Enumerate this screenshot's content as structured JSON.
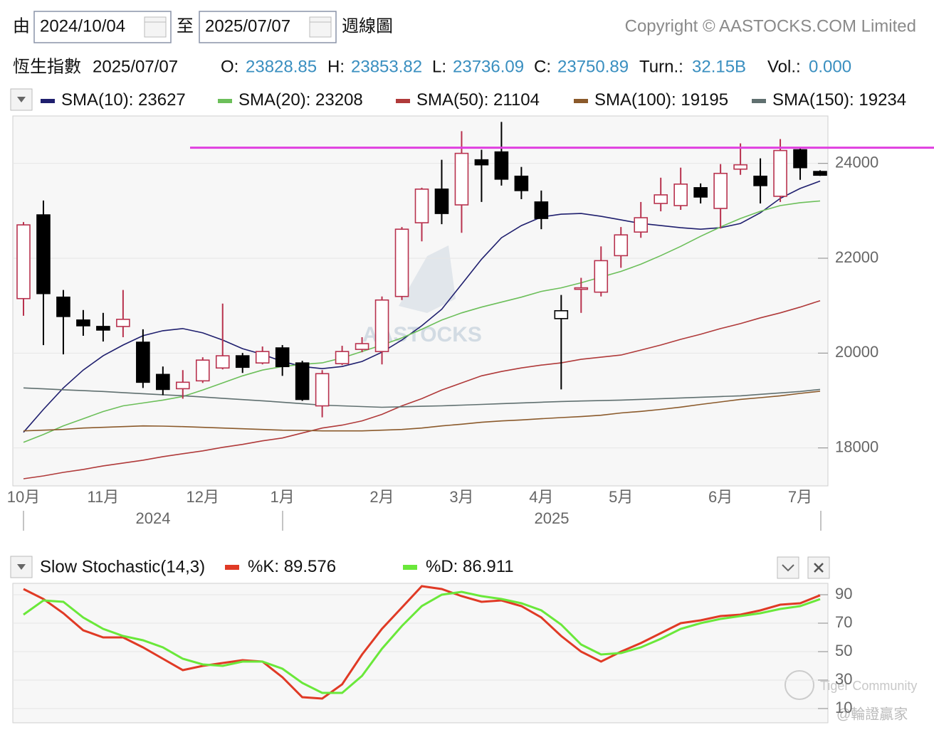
{
  "header": {
    "from_label": "由",
    "from_date": "2024/10/04",
    "to_label": "至",
    "to_date": "2025/07/07",
    "period": "週線圖",
    "copyright": "Copyright © AASTOCKS.COM Limited",
    "index_name": "恆生指數",
    "date": "2025/07/07",
    "quote": [
      {
        "label": "O:",
        "value": "23828.85"
      },
      {
        "label": "H:",
        "value": "23853.82"
      },
      {
        "label": "L:",
        "value": "23736.09"
      },
      {
        "label": "C:",
        "value": "23750.89"
      },
      {
        "label": "Turn.:",
        "value": "32.15B"
      },
      {
        "label": "Vol.:",
        "value": "0.000"
      }
    ]
  },
  "watermarks": [
    "AASTOCKS",
    "Tiger Community",
    "@輪證贏家"
  ],
  "chart_data": [
    {
      "type": "candlestick",
      "categories": [
        "10月",
        null,
        null,
        null,
        "11月",
        null,
        null,
        null,
        null,
        "12月",
        null,
        null,
        null,
        "1月",
        null,
        null,
        null,
        null,
        "2月",
        null,
        null,
        null,
        "3月",
        null,
        null,
        null,
        "4月",
        null,
        null,
        null,
        "5月",
        null,
        null,
        null,
        null,
        "6月",
        null,
        null,
        null,
        "7月",
        null
      ],
      "year_labels": [
        "2024",
        "2025"
      ],
      "open": [
        21149,
        22914,
        21179,
        20697,
        20561,
        20561,
        20229,
        19550,
        19249,
        19415,
        19686,
        19943,
        19792,
        20109,
        19792,
        18887,
        19777,
        20078,
        20033,
        21194,
        22748,
        23457,
        23125,
        24075,
        24241,
        23729,
        23186,
        20727,
        21345,
        21285,
        22054,
        22552,
        23155,
        23110,
        23487,
        23050,
        23879,
        23729,
        23306,
        24287,
        23828.85
      ],
      "high": [
        22763,
        23216,
        21330,
        20908,
        20848,
        21330,
        20501,
        19717,
        19641,
        19912,
        21044,
        20003,
        20139,
        20169,
        19837,
        19641,
        20154,
        20335,
        21194,
        22658,
        23487,
        24075,
        24679,
        24287,
        24875,
        23925,
        23427,
        21225,
        21587,
        22250,
        22658,
        23186,
        23698,
        23910,
        23578,
        23985,
        24422,
        24106,
        24513,
        24347,
        23853.82
      ],
      "low": [
        20787,
        20169,
        19973,
        20365,
        20244,
        20335,
        19264,
        19113,
        19038,
        19370,
        19656,
        19581,
        19762,
        19520,
        18992,
        18646,
        19747,
        20018,
        19762,
        21119,
        22356,
        22718,
        22537,
        23186,
        23532,
        23246,
        22612,
        19234,
        20848,
        21194,
        21798,
        22431,
        22989,
        23020,
        23155,
        22627,
        23759,
        23155,
        23186,
        23653,
        23736.09
      ],
      "close": [
        22703,
        21255,
        20772,
        20576,
        20486,
        20712,
        19385,
        19234,
        19385,
        19852,
        19943,
        19701,
        20033,
        19716,
        19023,
        19566,
        20033,
        20199,
        21119,
        22612,
        23457,
        22944,
        24211,
        23970,
        23668,
        23427,
        22839,
        20893,
        21376,
        21949,
        22492,
        22854,
        23336,
        23563,
        23291,
        23789,
        23970,
        23532,
        24271,
        23910,
        23750.89
      ],
      "up_color": "#b8324e",
      "down_color": "#000000",
      "series": [
        {
          "name": "SMA(10):",
          "color": "#1f1f6e",
          "values": [
            18330,
            18812,
            19265,
            19642,
            19943,
            20170,
            20366,
            20471,
            20517,
            20426,
            20275,
            20094,
            19974,
            19823,
            19717,
            19672,
            19717,
            19823,
            20019,
            20275,
            20577,
            20924,
            21451,
            21979,
            22432,
            22688,
            22869,
            22929,
            22944,
            22884,
            22809,
            22733,
            22688,
            22643,
            22612,
            22643,
            22733,
            22959,
            23261,
            23472,
            23627
          ]
        },
        {
          "name": "SMA(20):",
          "color": "#6cbf5a",
          "values": [
            18119,
            18285,
            18466,
            18616,
            18767,
            18888,
            18948,
            19009,
            19084,
            19220,
            19370,
            19521,
            19642,
            19717,
            19762,
            19793,
            19898,
            20034,
            20170,
            20320,
            20501,
            20697,
            20848,
            20969,
            21074,
            21180,
            21301,
            21376,
            21482,
            21602,
            21723,
            21874,
            22055,
            22251,
            22462,
            22658,
            22839,
            22990,
            23110,
            23171,
            23208
          ]
        },
        {
          "name": "SMA(50):",
          "color": "#b03a3a",
          "values": [
            17350,
            17410,
            17485,
            17546,
            17621,
            17681,
            17742,
            17817,
            17878,
            17938,
            18013,
            18074,
            18149,
            18209,
            18315,
            18420,
            18481,
            18571,
            18707,
            18888,
            19039,
            19220,
            19370,
            19521,
            19612,
            19687,
            19747,
            19793,
            19868,
            19913,
            19959,
            20064,
            20170,
            20290,
            20396,
            20517,
            20622,
            20743,
            20848,
            20969,
            21104
          ]
        },
        {
          "name": "SMA(100):",
          "color": "#8b5a2b",
          "values": [
            18360,
            18375,
            18390,
            18420,
            18435,
            18450,
            18465,
            18460,
            18450,
            18435,
            18420,
            18405,
            18390,
            18375,
            18370,
            18360,
            18360,
            18360,
            18375,
            18390,
            18420,
            18465,
            18500,
            18541,
            18570,
            18590,
            18616,
            18640,
            18661,
            18690,
            18737,
            18770,
            18812,
            18860,
            18918,
            18970,
            19024,
            19060,
            19099,
            19150,
            19195
          ]
        },
        {
          "name": "SMA(150):",
          "color": "#607070",
          "values": [
            19265,
            19246,
            19227,
            19208,
            19190,
            19167,
            19144,
            19122,
            19100,
            19073,
            19047,
            19020,
            18994,
            18964,
            18934,
            18903,
            18888,
            18873,
            18858,
            18868,
            18878,
            18888,
            18903,
            18918,
            18934,
            18949,
            18964,
            18979,
            18989,
            18999,
            19009,
            19024,
            19039,
            19054,
            19069,
            19084,
            19099,
            19130,
            19160,
            19190,
            19234
          ]
        }
      ],
      "hline": {
        "value": 24330,
        "color": "#e040e0"
      },
      "ylim": [
        17200,
        25000
      ],
      "yticks": [
        18000,
        20000,
        22000,
        24000
      ],
      "grid": true
    },
    {
      "type": "line",
      "title": "Slow Stochastic(14,3)",
      "series": [
        {
          "name": "%K:",
          "color": "#e03a25",
          "values": [
            94,
            87,
            77,
            65,
            60,
            60,
            53,
            45,
            37,
            40,
            42,
            44,
            43,
            32,
            18,
            17,
            27,
            48,
            66,
            81,
            96,
            94,
            89,
            85,
            86,
            82,
            74,
            61,
            50,
            43,
            50,
            56,
            63,
            70,
            72,
            75,
            76,
            79,
            83,
            84,
            89.576
          ]
        },
        {
          "name": "%D:",
          "color": "#6ae83a",
          "values": [
            76,
            86,
            85,
            74,
            66,
            61,
            58,
            53,
            45,
            41,
            40,
            43,
            43,
            38,
            28,
            21,
            21,
            33,
            52,
            68,
            82,
            90,
            92,
            89,
            87,
            84,
            79,
            69,
            55,
            48,
            49,
            53,
            59,
            66,
            70,
            73,
            75,
            77,
            80,
            82,
            86.911
          ]
        }
      ],
      "ylim": [
        0,
        98
      ],
      "yticks": [
        10,
        30,
        50,
        70,
        90
      ],
      "grid": true
    }
  ]
}
